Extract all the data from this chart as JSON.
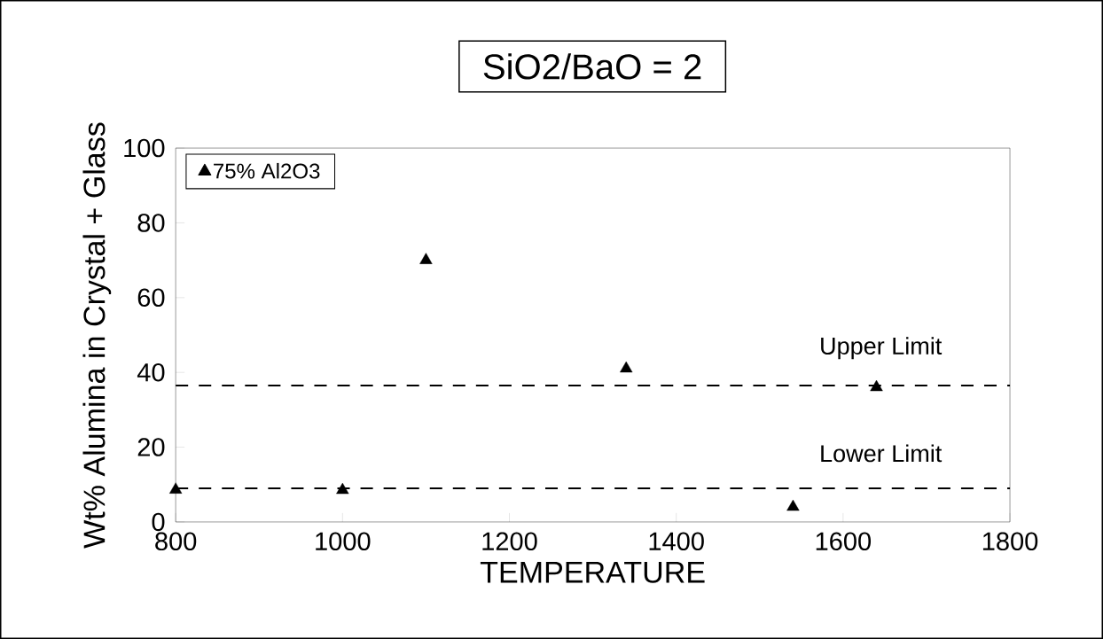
{
  "chart_data": {
    "type": "scatter",
    "title": "SiO2/BaO = 2",
    "xlabel": "TEMPERATURE",
    "ylabel": "Wt% Alumina in Crystal + Glass",
    "x": [
      800,
      1000,
      1100,
      1340,
      1540,
      1640
    ],
    "series": [
      {
        "name": "75% Al2O3",
        "color": "#000000",
        "values": [
          8.6,
          8.5,
          70,
          41,
          4,
          36
        ]
      }
    ],
    "marker": "triangle",
    "legend": "top left",
    "xlim": [
      800,
      1800
    ],
    "xticks": [
      800,
      1000,
      1200,
      1400,
      1600,
      1800
    ],
    "ylim": [
      0,
      100
    ],
    "yticks": [
      0,
      20,
      40,
      60,
      80,
      100
    ],
    "ref_lines": [
      {
        "axis": "y",
        "value": 36.5,
        "label": "Upper Limit",
        "line_style": "dashed"
      },
      {
        "axis": "y",
        "value": 9,
        "label": "Lower Limit",
        "line_style": "dashed"
      }
    ]
  }
}
